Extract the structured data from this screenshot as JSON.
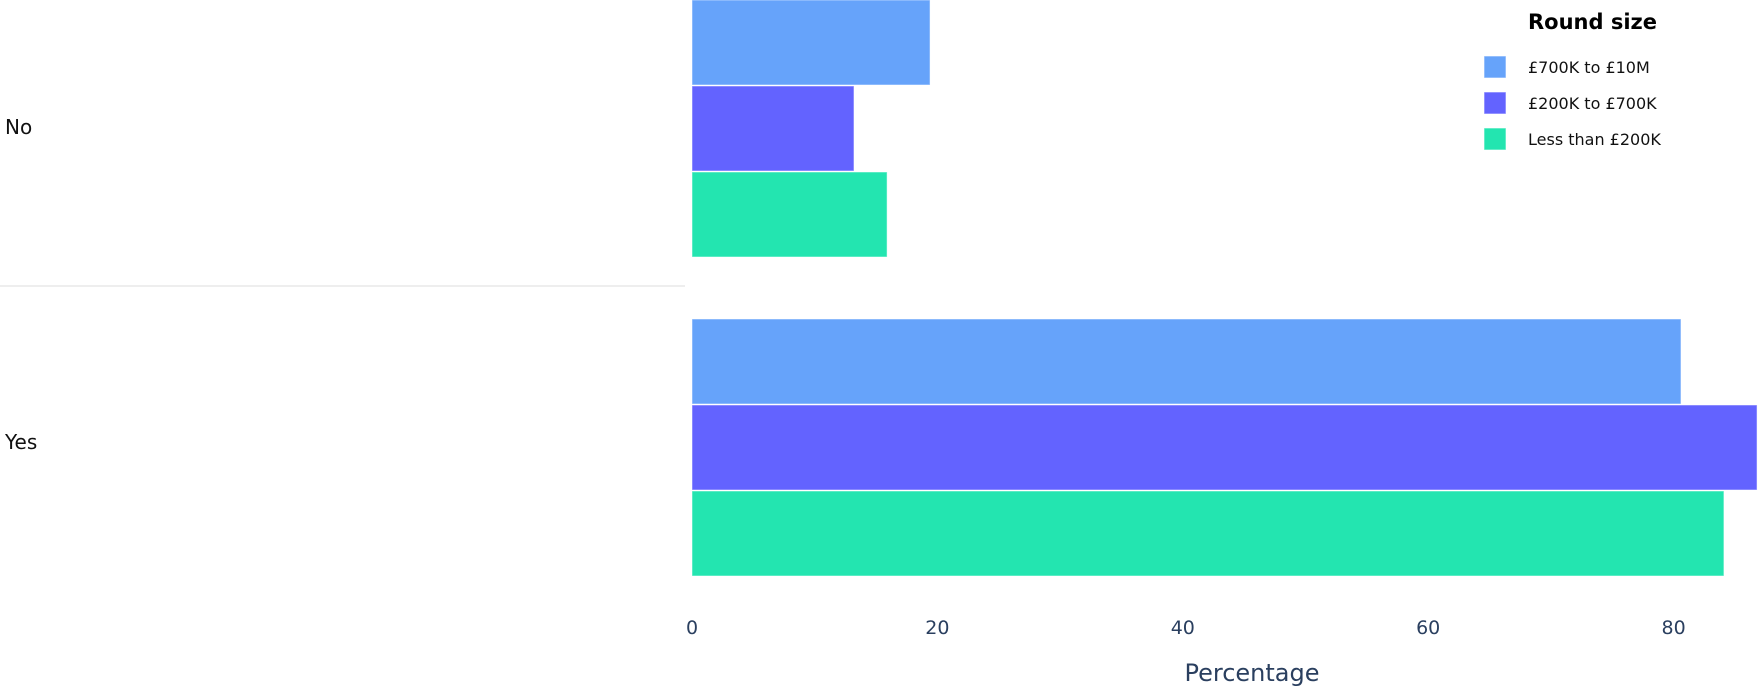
{
  "chart_data": {
    "type": "bar",
    "orientation": "horizontal",
    "title": "",
    "xlabel": "Percentage",
    "ylabel": "",
    "xlim": [
      0,
      87
    ],
    "xticks": [
      0,
      20,
      40,
      60,
      80
    ],
    "grid": false,
    "categories": [
      "No",
      "Yes"
    ],
    "legend": {
      "title": "Round size",
      "placement": "top-right"
    },
    "series": [
      {
        "name": "£700K to £10M",
        "color": "#66a3fa",
        "values": [
          19.4,
          80.6
        ]
      },
      {
        "name": "£200K to £700K",
        "color": "#6363ff",
        "values": [
          13.2,
          86.8
        ]
      },
      {
        "name": "Less than £200K",
        "color": "#23e5b0",
        "values": [
          15.9,
          84.1
        ]
      }
    ]
  }
}
